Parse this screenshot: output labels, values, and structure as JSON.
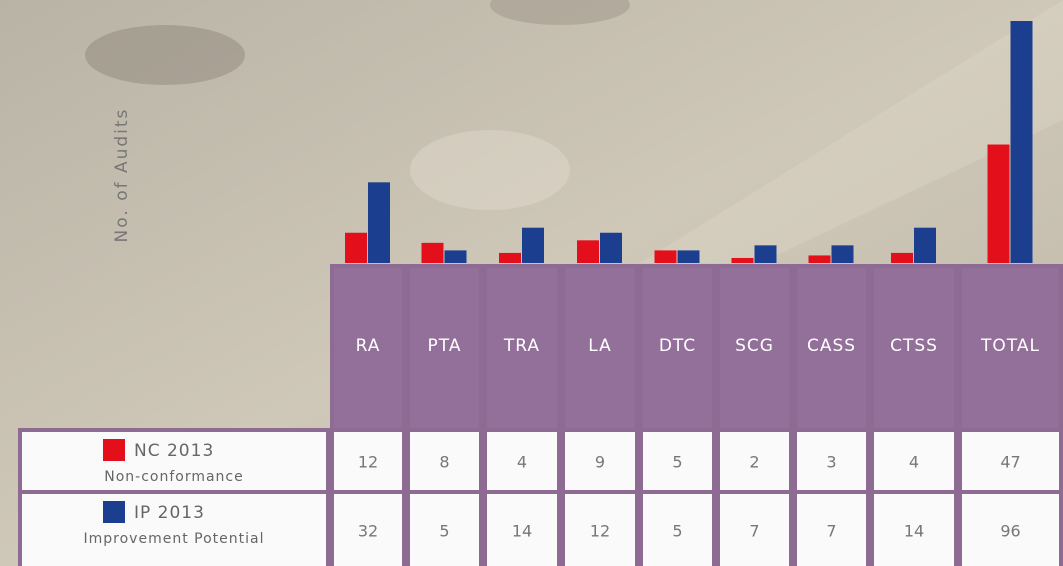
{
  "chart_data": {
    "type": "bar",
    "y_label": "No. of Audits",
    "categories": [
      "RA",
      "PTA",
      "TRA",
      "LA",
      "DTC",
      "SCG",
      "CASS",
      "CTSS",
      "TOTAL"
    ],
    "series": [
      {
        "name": "NC 2013",
        "description": "Non-conformance",
        "color": "#e3101c",
        "values": [
          12,
          8,
          4,
          9,
          5,
          2,
          3,
          4,
          47
        ]
      },
      {
        "name": "IP 2013",
        "description": "Improvement Potential",
        "color": "#1b3e8e",
        "values": [
          32,
          5,
          14,
          12,
          5,
          7,
          7,
          14,
          96
        ]
      }
    ]
  }
}
